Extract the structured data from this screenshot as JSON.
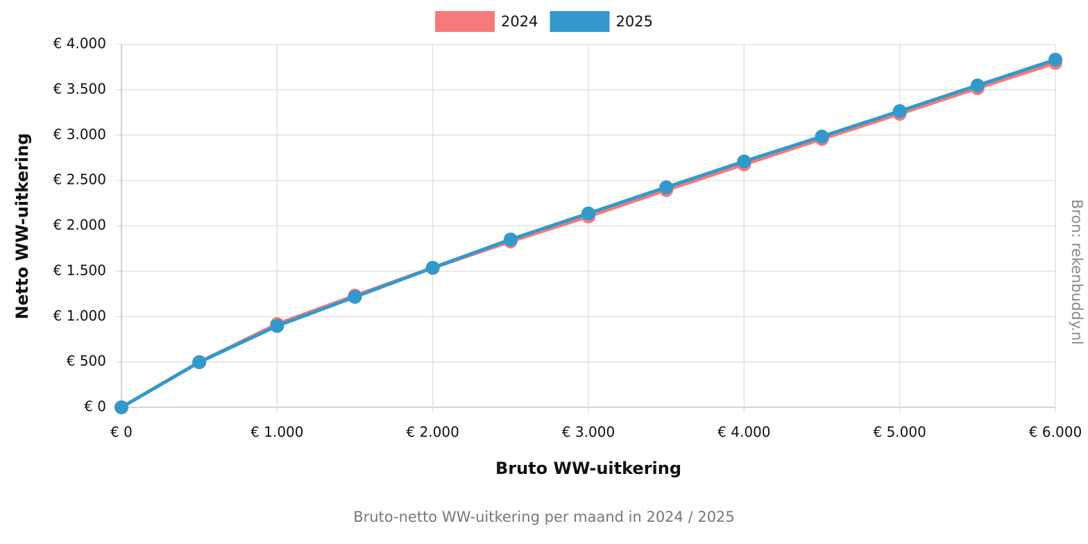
{
  "chart_data": {
    "type": "line",
    "caption": "Bruto-netto WW-uitkering per maand in 2024 / 2025",
    "source": "Bron: rekenbuddy.nl",
    "xlabel": "Bruto WW-uitkering",
    "ylabel": "Netto WW-uitkering",
    "legend": "top",
    "grid": true,
    "x": [
      0,
      500,
      1000,
      1500,
      2000,
      2500,
      3000,
      3500,
      4000,
      4500,
      5000,
      5500,
      6000
    ],
    "series": [
      {
        "name": "2024",
        "color": "#f77a7a",
        "values": [
          0,
          497,
          918,
          1231,
          1537,
          1828,
          2103,
          2394,
          2677,
          2958,
          3235,
          3518,
          3795
        ]
      },
      {
        "name": "2025",
        "color": "#3399cc",
        "values": [
          0,
          498,
          897,
          1217,
          1538,
          1850,
          2137,
          2425,
          2710,
          2985,
          3265,
          3548,
          3832
        ]
      }
    ],
    "xlim": [
      0,
      6000
    ],
    "xticks": [
      {
        "value": 0,
        "label": "€ 0"
      },
      {
        "value": 1000,
        "label": "€ 1.000"
      },
      {
        "value": 2000,
        "label": "€ 2.000"
      },
      {
        "value": 3000,
        "label": "€ 3.000"
      },
      {
        "value": 4000,
        "label": "€ 4.000"
      },
      {
        "value": 5000,
        "label": "€ 5.000"
      },
      {
        "value": 6000,
        "label": "€ 6.000"
      }
    ],
    "ylim": [
      0,
      4000
    ],
    "yticks": [
      {
        "value": 0,
        "label": "€ 0"
      },
      {
        "value": 500,
        "label": "€ 500"
      },
      {
        "value": 1000,
        "label": "€ 1.000"
      },
      {
        "value": 1500,
        "label": "€ 1.500"
      },
      {
        "value": 2000,
        "label": "€ 2.000"
      },
      {
        "value": 2500,
        "label": "€ 2.500"
      },
      {
        "value": 3000,
        "label": "€ 3.000"
      },
      {
        "value": 3500,
        "label": "€ 3.500"
      },
      {
        "value": 4000,
        "label": "€ 4.000"
      }
    ]
  }
}
